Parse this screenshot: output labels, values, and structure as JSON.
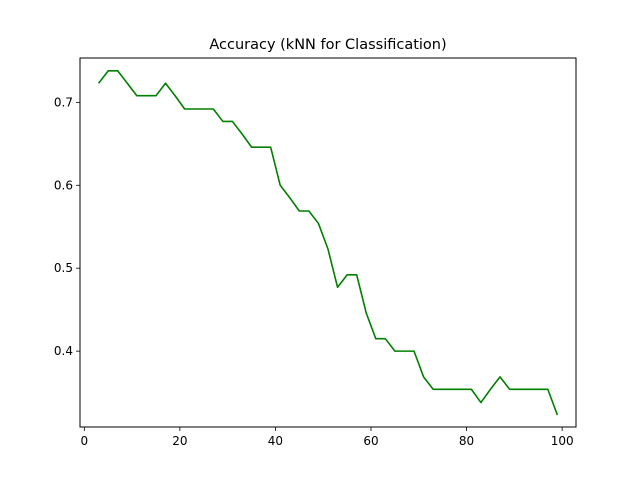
{
  "chart_data": {
    "type": "line",
    "title": "Accuracy (kNN for Classification)",
    "xlabel": "",
    "ylabel": "",
    "xlim": [
      -0.9,
      102.9
    ],
    "ylim": [
      0.3085,
      0.7535
    ],
    "xticks": [
      0,
      20,
      40,
      60,
      80,
      100
    ],
    "yticks": [
      0.4,
      0.5,
      0.6,
      0.7
    ],
    "grid": false,
    "series": [
      {
        "color": "#008000",
        "x": [
          3,
          5,
          7,
          9,
          11,
          13,
          15,
          17,
          19,
          21,
          23,
          25,
          27,
          29,
          31,
          33,
          35,
          37,
          39,
          41,
          43,
          45,
          47,
          49,
          51,
          53,
          55,
          57,
          59,
          61,
          63,
          65,
          67,
          69,
          71,
          73,
          75,
          77,
          79,
          81,
          83,
          85,
          87,
          89,
          91,
          93,
          95,
          97,
          99
        ],
        "y": [
          0.723,
          0.738,
          0.738,
          0.723,
          0.708,
          0.708,
          0.708,
          0.723,
          0.708,
          0.692,
          0.692,
          0.692,
          0.692,
          0.677,
          0.677,
          0.662,
          0.646,
          0.646,
          0.646,
          0.6,
          0.585,
          0.569,
          0.569,
          0.554,
          0.523,
          0.477,
          0.492,
          0.492,
          0.446,
          0.415,
          0.415,
          0.4,
          0.4,
          0.4,
          0.369,
          0.354,
          0.354,
          0.354,
          0.354,
          0.354,
          0.338,
          0.354,
          0.369,
          0.354,
          0.354,
          0.354,
          0.354,
          0.354,
          0.323
        ]
      }
    ]
  }
}
